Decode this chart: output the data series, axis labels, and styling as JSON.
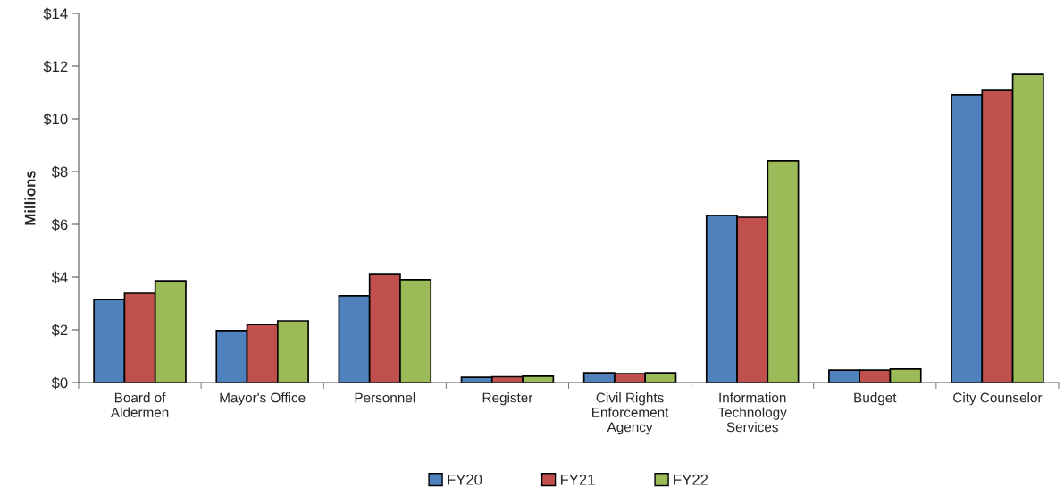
{
  "chart_data": {
    "type": "bar",
    "ylabel": "Millions",
    "categories": [
      "Board of\nAldermen",
      "Mayor's Office",
      "Personnel",
      "Register",
      "Civil Rights\nEnforcement\nAgency",
      "Information\nTechnology\nServices",
      "Budget",
      "City Counselor"
    ],
    "series": [
      {
        "name": "FY20",
        "color": "#4f81bd",
        "values": [
          3.15,
          1.97,
          3.29,
          0.2,
          0.37,
          6.34,
          0.47,
          10.92
        ]
      },
      {
        "name": "FY21",
        "color": "#c0504d",
        "values": [
          3.39,
          2.2,
          4.1,
          0.22,
          0.34,
          6.27,
          0.47,
          11.08
        ]
      },
      {
        "name": "FY22",
        "color": "#9bbb59",
        "values": [
          3.86,
          2.34,
          3.9,
          0.24,
          0.37,
          8.41,
          0.51,
          11.69
        ]
      }
    ],
    "ylim": [
      0,
      14
    ],
    "yticks": [
      {
        "value": 0,
        "label": "$0"
      },
      {
        "value": 2,
        "label": "$2"
      },
      {
        "value": 4,
        "label": "$4"
      },
      {
        "value": 6,
        "label": "$6"
      },
      {
        "value": 8,
        "label": "$8"
      },
      {
        "value": 10,
        "label": "$10"
      },
      {
        "value": 12,
        "label": "$12"
      },
      {
        "value": 14,
        "label": "$14"
      }
    ],
    "grid": false,
    "legend": "bottom"
  }
}
